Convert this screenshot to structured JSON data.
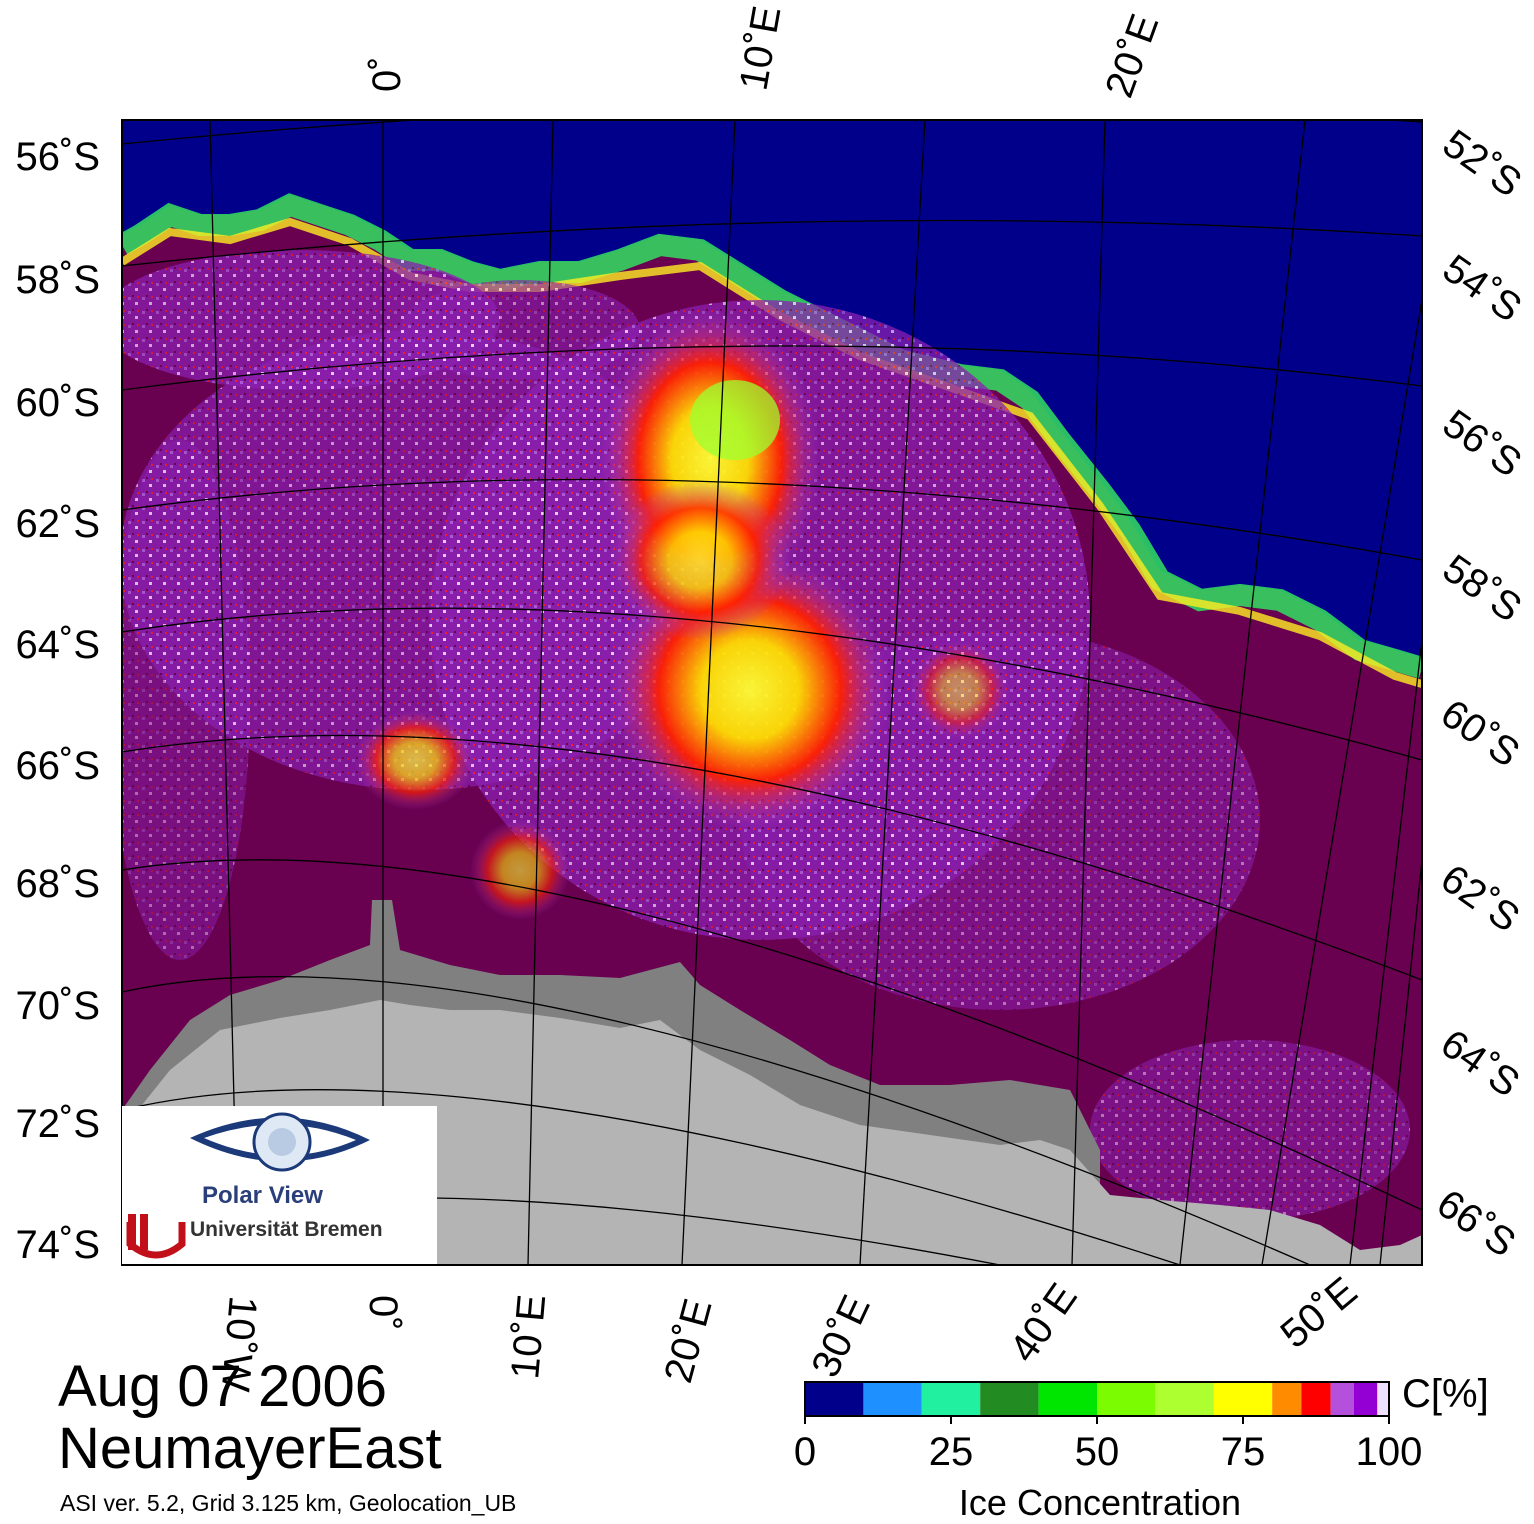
{
  "map": {
    "name": "NeumayerEast",
    "date": "Aug 07 2006",
    "info": "ASI ver. 5.2,  Grid 3.125 km, Geolocation_UB",
    "lat_labels_left": [
      "56˚S",
      "58˚S",
      "60˚S",
      "62˚S",
      "64˚S",
      "66˚S",
      "68˚S",
      "70˚S",
      "72˚S",
      "74˚S"
    ],
    "lat_labels_right": [
      "52˚S",
      "54˚S",
      "56˚S",
      "58˚S",
      "60˚S",
      "62˚S",
      "64˚S",
      "66˚S"
    ],
    "lon_labels_top": [
      "0˚",
      "10˚E",
      "20˚E"
    ],
    "lon_labels_bottom": [
      "10˚W",
      "0˚",
      "10˚E",
      "20˚E",
      "30˚E",
      "40˚E",
      "50˚E"
    ],
    "colors": {
      "open_water": "#00008b",
      "full_ice": "#6a0050",
      "land": "#b4b4b4",
      "ice_shelf": "#808080"
    }
  },
  "colorbar": {
    "title": "Ice Concentration",
    "unit": "C[%]",
    "ticks": [
      "0",
      "25",
      "50",
      "75",
      "100"
    ],
    "bins": [
      {
        "from": 0,
        "to": 10,
        "color": "#00008b"
      },
      {
        "from": 10,
        "to": 20,
        "color": "#1e90ff"
      },
      {
        "from": 20,
        "to": 30,
        "color": "#20f0a0"
      },
      {
        "from": 30,
        "to": 40,
        "color": "#228b22"
      },
      {
        "from": 40,
        "to": 50,
        "color": "#00e600"
      },
      {
        "from": 50,
        "to": 60,
        "color": "#7cfc00"
      },
      {
        "from": 60,
        "to": 70,
        "color": "#adff2f"
      },
      {
        "from": 70,
        "to": 80,
        "color": "#ffff00"
      },
      {
        "from": 80,
        "to": 85,
        "color": "#ff8c00"
      },
      {
        "from": 85,
        "to": 90,
        "color": "#ff0000"
      },
      {
        "from": 90,
        "to": 94,
        "color": "#b450dc"
      },
      {
        "from": 94,
        "to": 98,
        "color": "#9400d3"
      },
      {
        "from": 98,
        "to": 100,
        "color": "#f0e0ff"
      }
    ]
  },
  "logo": {
    "name": "Polar View",
    "institution": "Universität Bremen"
  }
}
